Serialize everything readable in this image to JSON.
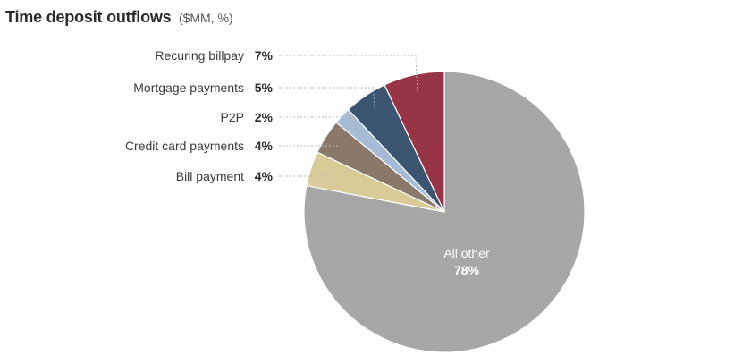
{
  "chart_data": {
    "type": "pie",
    "title": "Time deposit outflows",
    "subtitle": "($MM, %)",
    "slices": [
      {
        "label": "All other",
        "value": 78,
        "value_label": "78%",
        "color": "#a7a7a5"
      },
      {
        "label": "Bill payment",
        "value": 4,
        "value_label": "4%",
        "color": "#d8cb98"
      },
      {
        "label": "Credit card payments",
        "value": 4,
        "value_label": "4%",
        "color": "#8a7868"
      },
      {
        "label": "P2P",
        "value": 2,
        "value_label": "2%",
        "color": "#a6bcd6"
      },
      {
        "label": "Mortgage payments",
        "value": 5,
        "value_label": "5%",
        "color": "#3b5472"
      },
      {
        "label": "Recuring billpay",
        "value": 7,
        "value_label": "7%",
        "color": "#973446"
      }
    ],
    "legend": "callout-left"
  }
}
